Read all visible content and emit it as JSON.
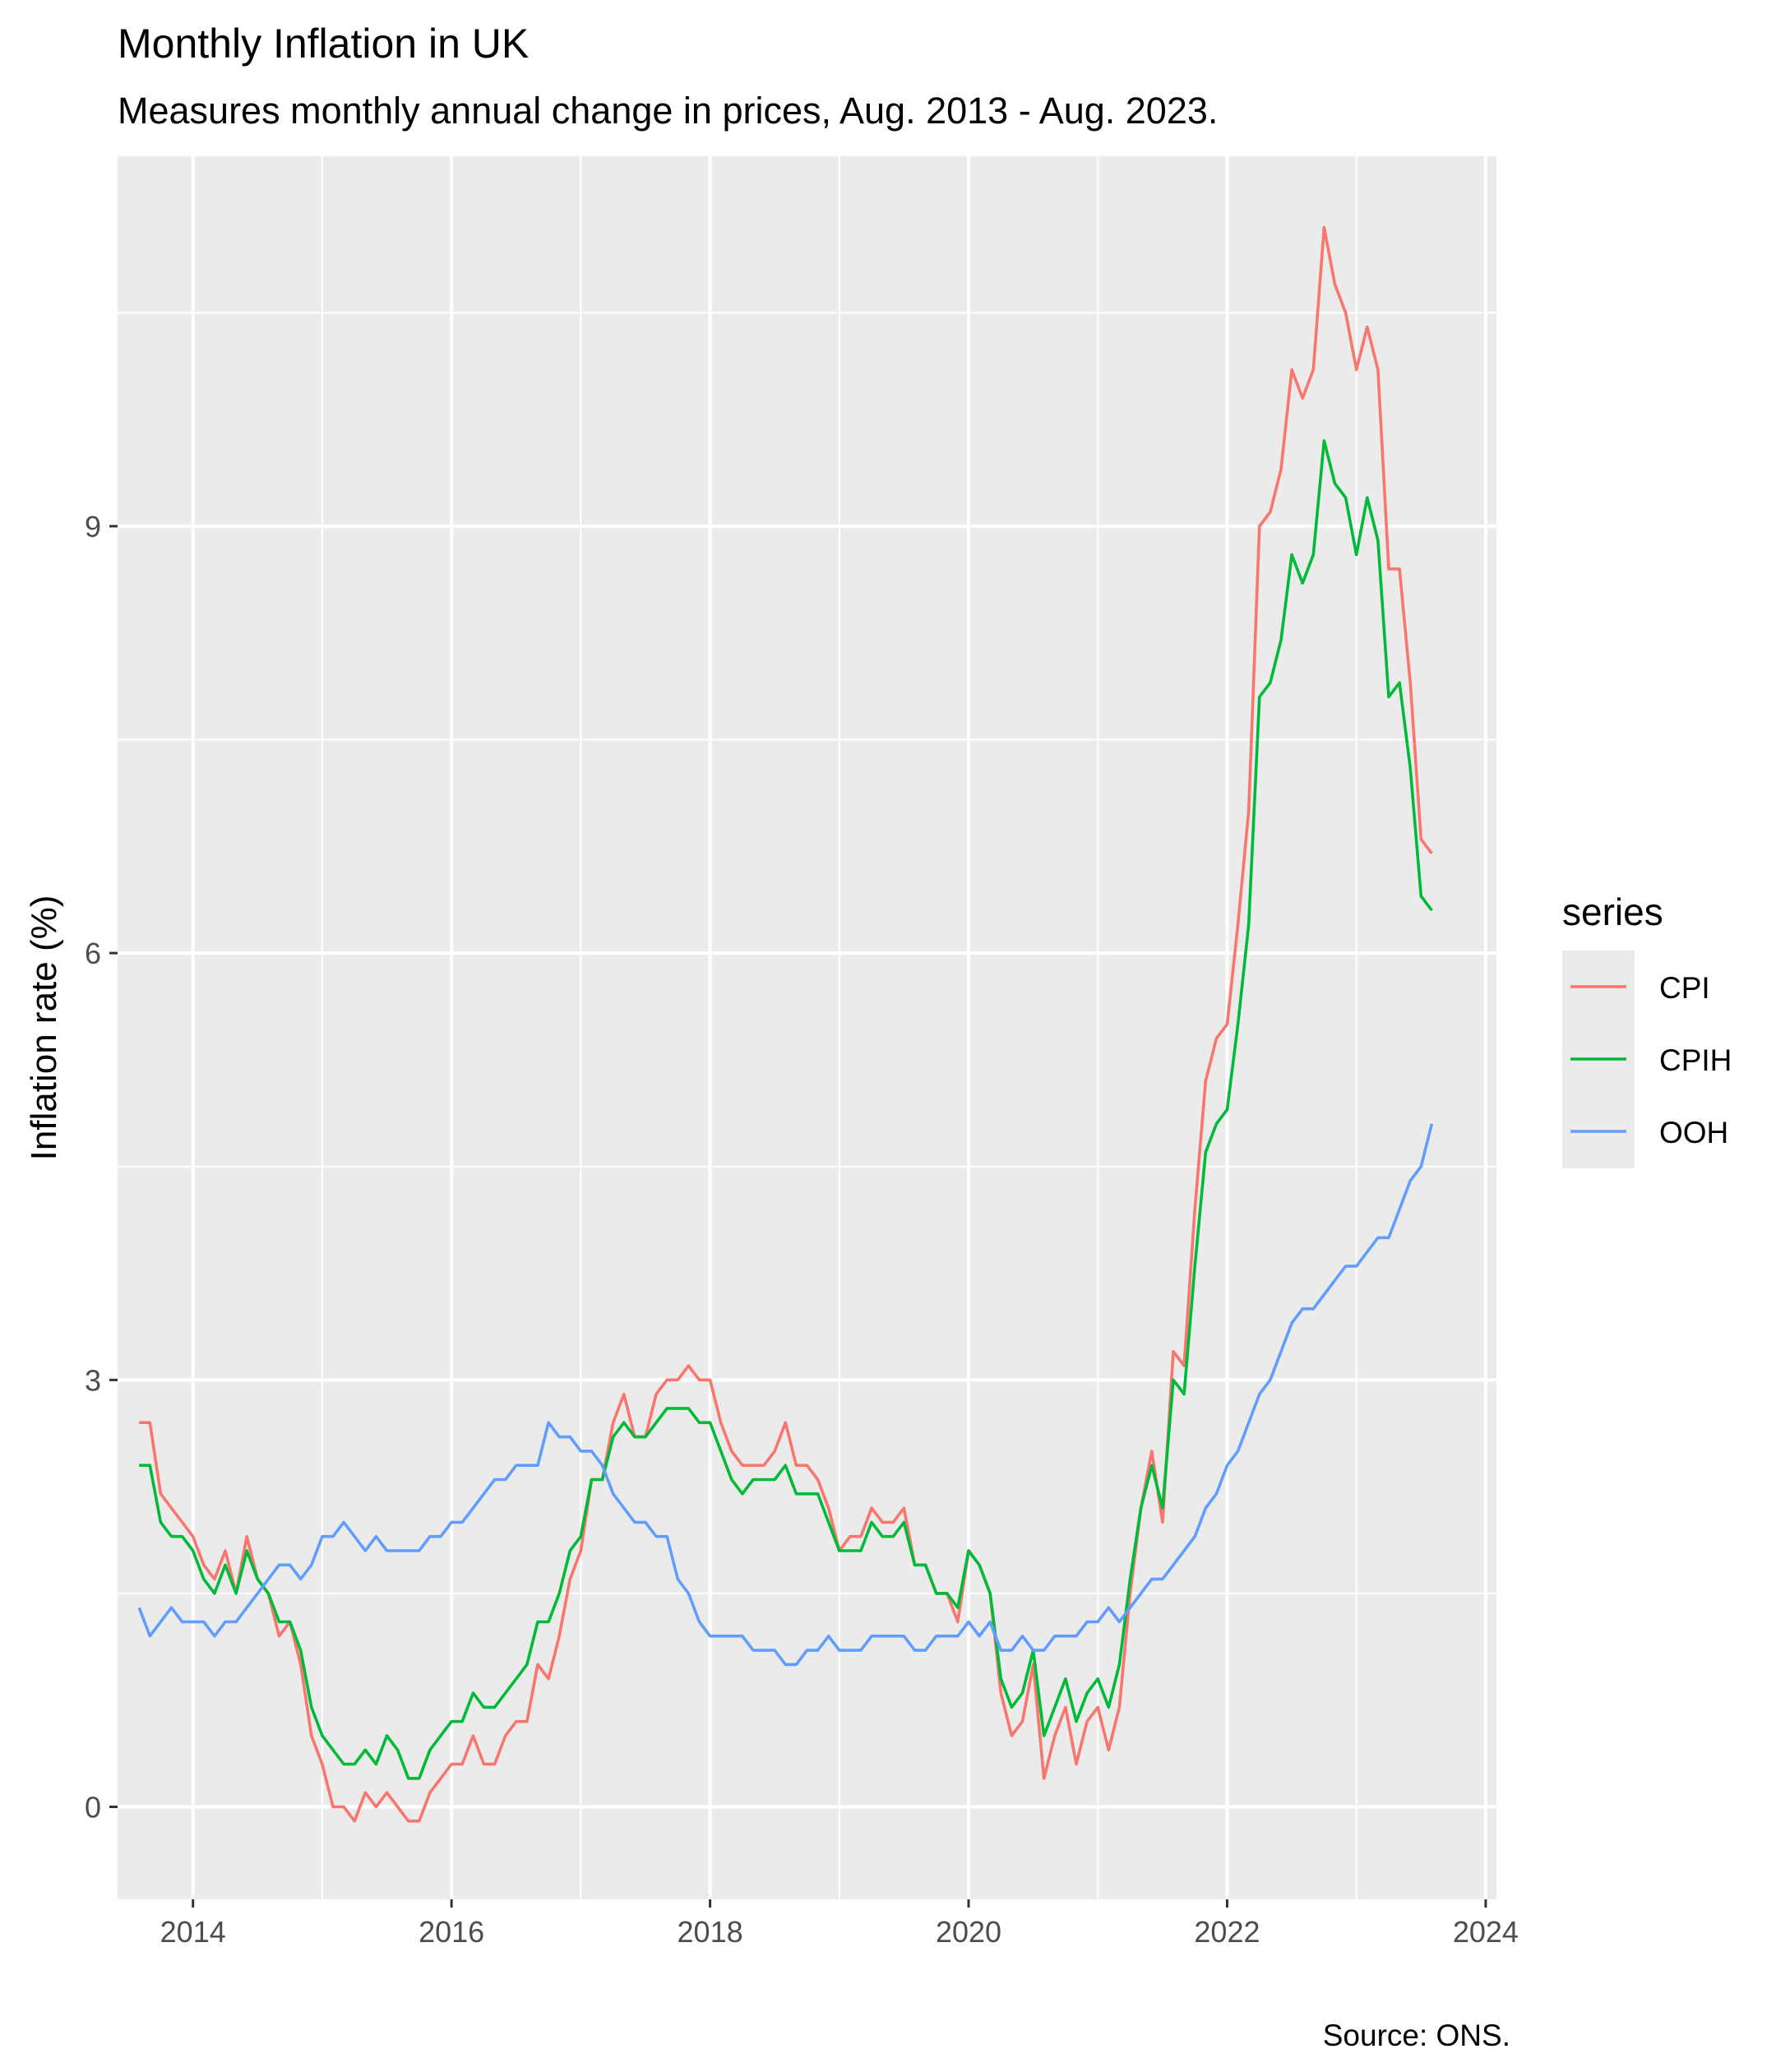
{
  "chart_data": {
    "type": "line",
    "title": "Monthly Inflation in UK",
    "subtitle": "Measures monthly annual change in prices, Aug. 2013 - Aug. 2023.",
    "xlabel": "",
    "ylabel": "Inflation rate (%)",
    "caption": "Source: ONS.",
    "x_start": "2013-08",
    "x_end": "2023-08",
    "xlim": [
      "2013-06",
      "2024-02"
    ],
    "ylim": [
      -0.65,
      11.6
    ],
    "x_ticks": [
      "2014",
      "2016",
      "2018",
      "2020",
      "2022",
      "2024"
    ],
    "y_ticks": [
      "0",
      "3",
      "6",
      "9"
    ],
    "grid": true,
    "legend": {
      "title": "series",
      "position": "right"
    },
    "colors": {
      "CPI": "#F8766D",
      "CPIH": "#00BA38",
      "OOH": "#619CFF",
      "panel": "#EBEBEB",
      "grid": "#FFFFFF"
    },
    "series": [
      {
        "name": "CPI",
        "color": "#F8766D",
        "values": [
          2.7,
          2.7,
          2.2,
          2.1,
          2.0,
          1.9,
          1.7,
          1.6,
          1.8,
          1.5,
          1.9,
          1.6,
          1.5,
          1.2,
          1.3,
          1.0,
          0.5,
          0.3,
          0.0,
          0.0,
          -0.1,
          0.1,
          0.0,
          0.1,
          0.0,
          -0.1,
          -0.1,
          0.1,
          0.2,
          0.3,
          0.3,
          0.5,
          0.3,
          0.3,
          0.5,
          0.6,
          0.6,
          1.0,
          0.9,
          1.2,
          1.6,
          1.8,
          2.3,
          2.3,
          2.7,
          2.9,
          2.6,
          2.6,
          2.9,
          3.0,
          3.0,
          3.1,
          3.0,
          3.0,
          2.7,
          2.5,
          2.4,
          2.4,
          2.4,
          2.5,
          2.7,
          2.4,
          2.4,
          2.3,
          2.1,
          1.8,
          1.9,
          1.9,
          2.1,
          2.0,
          2.0,
          2.1,
          1.7,
          1.7,
          1.5,
          1.5,
          1.3,
          1.8,
          1.7,
          1.5,
          0.8,
          0.5,
          0.6,
          1.0,
          0.2,
          0.5,
          0.7,
          0.3,
          0.6,
          0.7,
          0.4,
          0.7,
          1.5,
          2.1,
          2.5,
          2.0,
          3.2,
          3.1,
          4.2,
          5.1,
          5.4,
          5.5,
          6.2,
          7.0,
          9.0,
          9.1,
          9.4,
          10.1,
          9.9,
          10.1,
          11.1,
          10.7,
          10.5,
          10.1,
          10.4,
          10.1,
          8.7,
          8.7,
          7.9,
          6.8,
          6.7
        ]
      },
      {
        "name": "CPIH",
        "color": "#00BA38",
        "values": [
          2.4,
          2.4,
          2.0,
          1.9,
          1.9,
          1.8,
          1.6,
          1.5,
          1.7,
          1.5,
          1.8,
          1.6,
          1.5,
          1.3,
          1.3,
          1.1,
          0.7,
          0.5,
          0.4,
          0.3,
          0.3,
          0.4,
          0.3,
          0.5,
          0.4,
          0.2,
          0.2,
          0.4,
          0.5,
          0.6,
          0.6,
          0.8,
          0.7,
          0.7,
          0.8,
          0.9,
          1.0,
          1.3,
          1.3,
          1.5,
          1.8,
          1.9,
          2.3,
          2.3,
          2.6,
          2.7,
          2.6,
          2.6,
          2.7,
          2.8,
          2.8,
          2.8,
          2.7,
          2.7,
          2.5,
          2.3,
          2.2,
          2.3,
          2.3,
          2.3,
          2.4,
          2.2,
          2.2,
          2.2,
          2.0,
          1.8,
          1.8,
          1.8,
          2.0,
          1.9,
          1.9,
          2.0,
          1.7,
          1.7,
          1.5,
          1.5,
          1.4,
          1.8,
          1.7,
          1.5,
          0.9,
          0.7,
          0.8,
          1.1,
          0.5,
          0.7,
          0.9,
          0.6,
          0.8,
          0.9,
          0.7,
          1.0,
          1.6,
          2.1,
          2.4,
          2.1,
          3.0,
          2.9,
          3.8,
          4.6,
          4.8,
          4.9,
          5.5,
          6.2,
          7.8,
          7.9,
          8.2,
          8.8,
          8.6,
          8.8,
          9.6,
          9.3,
          9.2,
          8.8,
          9.2,
          8.9,
          7.8,
          7.9,
          7.3,
          6.4,
          6.3
        ]
      },
      {
        "name": "OOH",
        "color": "#619CFF",
        "values": [
          1.4,
          1.2,
          1.3,
          1.4,
          1.3,
          1.3,
          1.3,
          1.2,
          1.3,
          1.3,
          1.4,
          1.5,
          1.6,
          1.7,
          1.7,
          1.6,
          1.7,
          1.9,
          1.9,
          2.0,
          1.9,
          1.8,
          1.9,
          1.8,
          1.8,
          1.8,
          1.8,
          1.9,
          1.9,
          2.0,
          2.0,
          2.1,
          2.2,
          2.3,
          2.3,
          2.4,
          2.4,
          2.4,
          2.7,
          2.6,
          2.6,
          2.5,
          2.5,
          2.4,
          2.2,
          2.1,
          2.0,
          2.0,
          1.9,
          1.9,
          1.6,
          1.5,
          1.3,
          1.2,
          1.2,
          1.2,
          1.2,
          1.1,
          1.1,
          1.1,
          1.0,
          1.0,
          1.1,
          1.1,
          1.2,
          1.1,
          1.1,
          1.1,
          1.2,
          1.2,
          1.2,
          1.2,
          1.1,
          1.1,
          1.2,
          1.2,
          1.2,
          1.3,
          1.2,
          1.3,
          1.1,
          1.1,
          1.2,
          1.1,
          1.1,
          1.2,
          1.2,
          1.2,
          1.3,
          1.3,
          1.4,
          1.3,
          1.4,
          1.5,
          1.6,
          1.6,
          1.7,
          1.8,
          1.9,
          2.1,
          2.2,
          2.4,
          2.5,
          2.7,
          2.9,
          3.0,
          3.2,
          3.4,
          3.5,
          3.5,
          3.6,
          3.7,
          3.8,
          3.8,
          3.9,
          4.0,
          4.0,
          4.2,
          4.4,
          4.5,
          4.8
        ]
      }
    ]
  }
}
